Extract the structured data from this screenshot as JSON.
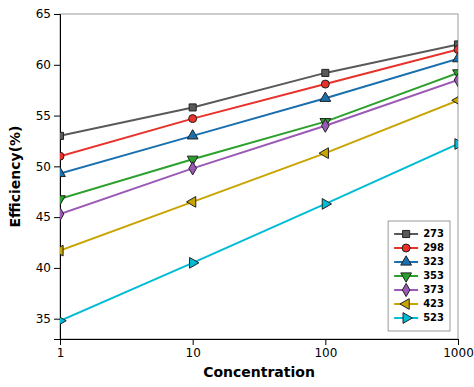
{
  "chart_data": {
    "type": "line",
    "xlabel": "Concentration",
    "ylabel": "Efficiency(%)",
    "x": [
      1,
      10,
      100,
      1000
    ],
    "series": [
      {
        "name": "273",
        "color": "#595959",
        "marker": "square",
        "values": [
          53.0,
          55.8,
          59.2,
          62.0
        ]
      },
      {
        "name": "298",
        "color": "#e8312a",
        "marker": "circle",
        "values": [
          51.0,
          54.7,
          58.1,
          61.5
        ]
      },
      {
        "name": "323",
        "color": "#1a6faf",
        "marker": "triangle-up",
        "values": [
          49.3,
          53.0,
          56.7,
          60.6
        ]
      },
      {
        "name": "353",
        "color": "#2ca02c",
        "marker": "triangle-down",
        "values": [
          46.8,
          50.7,
          54.4,
          59.2
        ]
      },
      {
        "name": "373",
        "color": "#9b59b6",
        "marker": "diamond",
        "values": [
          45.3,
          49.8,
          54.0,
          58.5
        ]
      },
      {
        "name": "423",
        "color": "#c8a400",
        "marker": "triangle-left",
        "values": [
          41.7,
          46.5,
          51.3,
          56.5
        ]
      },
      {
        "name": "523",
        "color": "#00bcd4",
        "marker": "triangle-right",
        "values": [
          34.8,
          40.5,
          46.3,
          52.2
        ]
      }
    ],
    "xlim": [
      1,
      1000
    ],
    "xticks": [
      1,
      10,
      100,
      1000
    ],
    "ylim": [
      33,
      65
    ],
    "yticks": [
      35,
      40,
      45,
      50,
      55,
      60,
      65
    ],
    "log": "x",
    "grid": false,
    "legend": "lower right"
  }
}
